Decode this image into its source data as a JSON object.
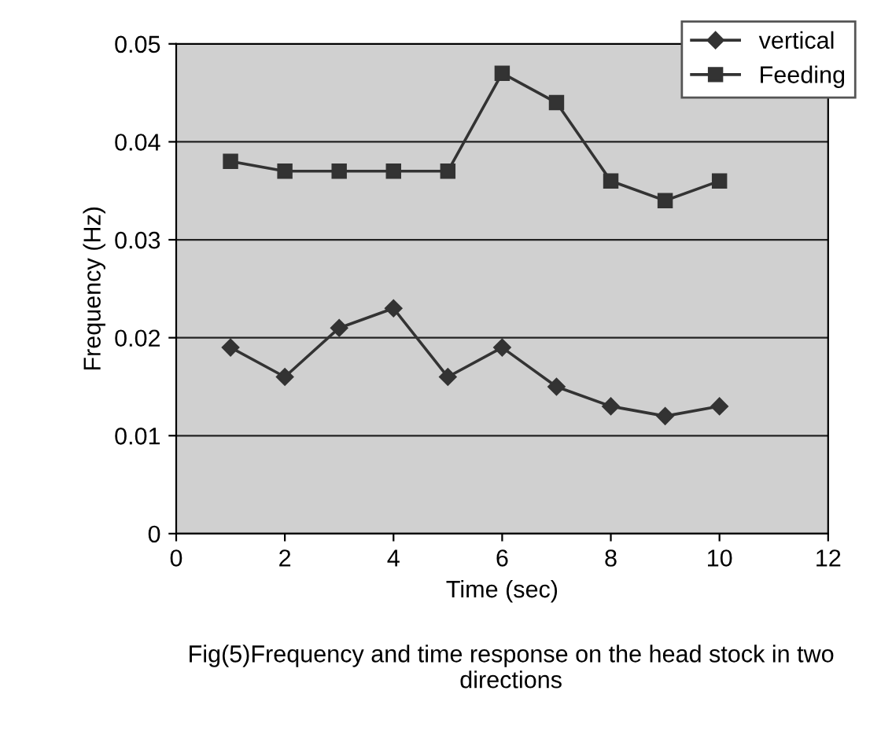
{
  "chart_data": {
    "type": "line",
    "xlabel": "Time (sec)",
    "ylabel": "Frequency (Hz)",
    "annotations": [
      "Fig(5)Frequency and time response on the head stock in two directions"
    ],
    "x": [
      1,
      2,
      3,
      4,
      5,
      6,
      7,
      8,
      9,
      10
    ],
    "series": [
      {
        "name": "vertical",
        "color": "#333333",
        "marker": "diamond",
        "values": [
          0.019,
          0.016,
          0.021,
          0.023,
          0.016,
          0.019,
          0.015,
          0.013,
          0.012,
          0.013
        ]
      },
      {
        "name": "Feeding",
        "color": "#333333",
        "marker": "square",
        "values": [
          0.038,
          0.037,
          0.037,
          0.037,
          0.037,
          0.047,
          0.044,
          0.036,
          0.034,
          0.036
        ]
      }
    ],
    "xlim": [
      0,
      12
    ],
    "xticks": [
      0,
      2,
      4,
      6,
      8,
      10,
      12
    ],
    "ylim": [
      0,
      0.05
    ],
    "yticks": [
      0,
      0.01,
      0.02,
      0.03,
      0.04,
      0.05
    ],
    "grid": "y",
    "legend": "top right",
    "line_style": "solid"
  }
}
